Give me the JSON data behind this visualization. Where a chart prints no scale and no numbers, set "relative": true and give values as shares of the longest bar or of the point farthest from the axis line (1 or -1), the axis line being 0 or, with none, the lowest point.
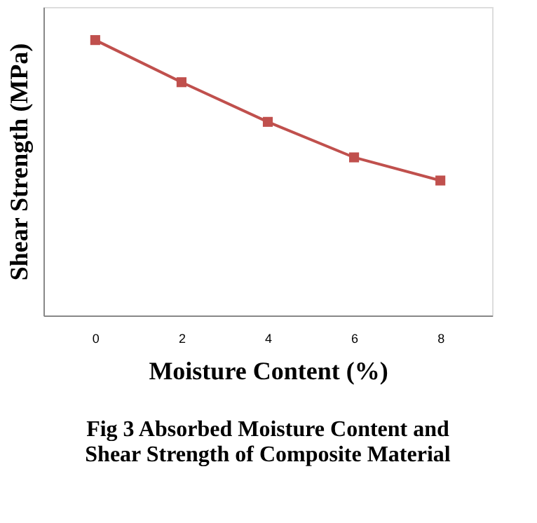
{
  "chart_data": {
    "type": "line",
    "title": "Fig 3 Absorbed Moisture Content and Shear Strength of Composite Material",
    "xlabel": "Moisture Content (%)",
    "ylabel": "Shear Strength (MPa)",
    "categories": [
      "0",
      "2",
      "4",
      "6",
      "8"
    ],
    "series": [
      {
        "color": "#c0504d",
        "values": [
          1,
          0.847,
          0.703,
          0.574,
          0.49
        ]
      }
    ],
    "relative": true,
    "marker": "square",
    "line_style": "solid",
    "grid": false,
    "legend": false
  }
}
